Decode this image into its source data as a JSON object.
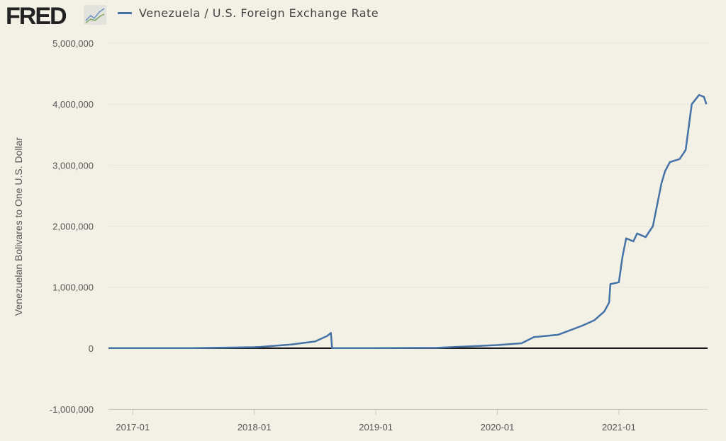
{
  "logo_text": "FRED",
  "colors": {
    "series": "#4572a7",
    "background": "#f3f1e6",
    "grid": "#e6e6de",
    "zero_line": "#000000"
  },
  "chart_data": {
    "type": "line",
    "title": "Venezuela / U.S. Foreign Exchange Rate",
    "xlabel": "",
    "ylabel": "Venezuelan Bolivares to One U.S. Dollar",
    "xlim": [
      2016.8,
      2021.73
    ],
    "ylim": [
      -1000000,
      5000000
    ],
    "yticks": [
      -1000000,
      0,
      1000000,
      2000000,
      3000000,
      4000000,
      5000000
    ],
    "ytick_labels": [
      "-1,000,000",
      "0",
      "1,000,000",
      "2,000,000",
      "3,000,000",
      "4,000,000",
      "5,000,000"
    ],
    "xticks": [
      2017,
      2018,
      2019,
      2020,
      2021
    ],
    "xtick_labels": [
      "2017-01",
      "2018-01",
      "2019-01",
      "2020-01",
      "2021-01"
    ],
    "grid": true,
    "legend": "top-left",
    "series": [
      {
        "name": "Venezuela / U.S. Foreign Exchange Rate",
        "x": [
          2016.8,
          2017.5,
          2018.0,
          2018.05,
          2018.3,
          2018.5,
          2018.6,
          2018.63,
          2018.64,
          2019.0,
          2019.5,
          2020.0,
          2020.2,
          2020.3,
          2020.5,
          2020.7,
          2020.8,
          2020.88,
          2020.92,
          2020.93,
          2021.0,
          2021.03,
          2021.06,
          2021.12,
          2021.15,
          2021.22,
          2021.28,
          2021.35,
          2021.38,
          2021.42,
          2021.5,
          2021.55,
          2021.6,
          2021.66,
          2021.7,
          2021.72
        ],
        "y": [
          5,
          10,
          15000,
          20000,
          60000,
          110000,
          200000,
          250000,
          0,
          500,
          5000,
          50000,
          80000,
          180000,
          220000,
          370000,
          460000,
          600000,
          750000,
          1050000,
          1080000,
          1500000,
          1800000,
          1750000,
          1880000,
          1820000,
          2000000,
          2700000,
          2900000,
          3050000,
          3100000,
          3250000,
          4000000,
          4150000,
          4120000,
          4000000
        ]
      }
    ]
  }
}
